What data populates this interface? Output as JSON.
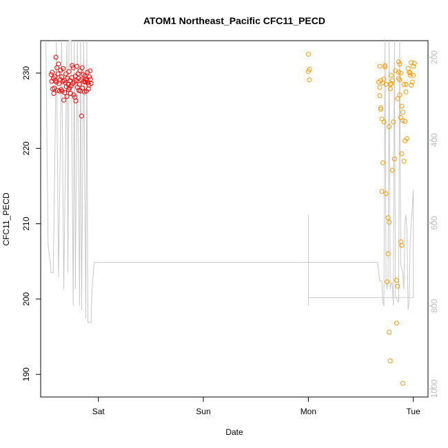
{
  "chart_data": {
    "type": "scatter",
    "title": "ATOM1 Northeast_Pacific CFC11_PECD",
    "xlabel": "Date",
    "ylabel": "CFC11_PECD",
    "x_unit": "days",
    "x_ticks": [
      {
        "value": 1.0,
        "label": "Sat"
      },
      {
        "value": 2.0,
        "label": "Sun"
      },
      {
        "value": 3.0,
        "label": "Mon"
      },
      {
        "value": 4.0,
        "label": "Tue"
      }
    ],
    "xlim": [
      0.45,
      4.14
    ],
    "ylim": [
      187.0,
      234.3
    ],
    "y_ticks": [
      190,
      200,
      210,
      220,
      230
    ],
    "y2_label": "",
    "y2_ticks": [
      200,
      400,
      600,
      800,
      1000
    ],
    "y2_lim": [
      1020.0,
      160.0
    ],
    "grid": false,
    "colors": {
      "series_red": "#ff0000",
      "series_orange": "#ff9900",
      "depth_line": "#c8c8c8",
      "right_axis": "#bdbdbd"
    },
    "series": [
      {
        "color": "red",
        "marker": "open-circle",
        "x": [
          0.55,
          0.555,
          0.56,
          0.565,
          0.57,
          0.575,
          0.58,
          0.585,
          0.59,
          0.595,
          0.6,
          0.605,
          0.61,
          0.615,
          0.62,
          0.625,
          0.63,
          0.635,
          0.64,
          0.645,
          0.65,
          0.655,
          0.66,
          0.665,
          0.67,
          0.675,
          0.68,
          0.685,
          0.69,
          0.695,
          0.7,
          0.705,
          0.71,
          0.715,
          0.72,
          0.725,
          0.73,
          0.735,
          0.74,
          0.745,
          0.75,
          0.755,
          0.76,
          0.765,
          0.77,
          0.775,
          0.78,
          0.785,
          0.79,
          0.795,
          0.8,
          0.805,
          0.81,
          0.815,
          0.82,
          0.825,
          0.83,
          0.835,
          0.84,
          0.845,
          0.85,
          0.855,
          0.86,
          0.865,
          0.87,
          0.875,
          0.88,
          0.885,
          0.89,
          0.895,
          0.9,
          0.905,
          0.91,
          0.915,
          0.92,
          0.925,
          0.93
        ],
        "y": [
          229.8,
          228.9,
          230.1,
          227.9,
          229.3,
          227.3,
          228.0,
          229.5,
          229.0,
          232.1,
          228.8,
          230.7,
          227.7,
          229.9,
          231.2,
          228.6,
          227.6,
          229.1,
          230.4,
          227.8,
          229.5,
          227.6,
          228.9,
          230.6,
          226.4,
          229.0,
          227.4,
          228.7,
          229.9,
          228.2,
          226.9,
          229.3,
          228.5,
          227.8,
          230.2,
          228.0,
          229.0,
          227.3,
          228.3,
          229.4,
          231.0,
          228.6,
          230.7,
          227.1,
          228.8,
          226.8,
          229.6,
          226.3,
          229.0,
          230.9,
          228.1,
          229.9,
          229.3,
          227.7,
          228.5,
          230.3,
          227.6,
          229.1,
          224.3,
          230.7,
          228.0,
          229.8,
          228.9,
          227.5,
          229.6,
          228.8,
          229.2,
          227.6,
          229.0,
          230.1,
          228.7,
          227.9,
          228.4,
          229.5,
          230.3,
          229.2,
          228.6
        ]
      },
      {
        "color": "orange",
        "marker": "open-circle",
        "x": [
          3.0,
          3.0,
          3.01,
          3.01,
          3.67,
          3.68,
          3.68,
          3.68,
          3.69,
          3.69,
          3.69,
          3.7,
          3.7,
          3.71,
          3.71,
          3.72,
          3.72,
          3.73,
          3.73,
          3.74,
          3.74,
          3.75,
          3.76,
          3.76,
          3.77,
          3.77,
          3.77,
          3.78,
          3.78,
          3.78,
          3.79,
          3.79,
          3.8,
          3.8,
          3.81,
          3.82,
          3.83,
          3.84,
          3.84,
          3.85,
          3.85,
          3.86,
          3.86,
          3.86,
          3.87,
          3.87,
          3.87,
          3.88,
          3.88,
          3.88,
          3.89,
          3.89,
          3.89,
          3.9,
          3.9,
          3.9,
          3.91,
          3.91,
          3.92,
          3.92,
          3.93,
          3.93,
          3.94,
          3.95,
          3.96,
          3.97,
          3.97,
          3.98,
          3.98,
          3.99,
          4.0,
          4.0,
          4.01
        ],
        "y": [
          232.5,
          230.2,
          230.5,
          229.1,
          228.8,
          230.9,
          228.1,
          227.0,
          229.0,
          225.2,
          225.4,
          214.3,
          223.9,
          218.1,
          228.7,
          223.5,
          229.2,
          231.0,
          230.8,
          214.0,
          228.5,
          202.3,
          206.0,
          210.8,
          222.9,
          210.2,
          195.6,
          191.8,
          228.5,
          227.9,
          229.7,
          228.6,
          217.1,
          229.0,
          223.5,
          218.6,
          230.3,
          202.5,
          196.8,
          201.7,
          226.6,
          229.3,
          231.5,
          230.1,
          227.1,
          231.2,
          229.1,
          230.0,
          224.1,
          207.6,
          225.6,
          219.3,
          207.1,
          188.8,
          224.8,
          223.7,
          218.3,
          228.5,
          221.0,
          223.6,
          227.5,
          228.5,
          221.3,
          230.6,
          230.1,
          230.0,
          229.7,
          228.4,
          231.4,
          228.8,
          230.9,
          229.7,
          231.3
        ]
      }
    ],
    "depth_series": {
      "axis": "right",
      "color": "gray",
      "style": "line",
      "x": [
        0.5,
        0.52,
        0.55,
        0.57,
        0.6,
        0.62,
        0.65,
        0.67,
        0.7,
        0.71,
        0.72,
        0.74,
        0.76,
        0.77,
        0.78,
        0.8,
        0.82,
        0.83,
        0.84,
        0.86,
        0.88,
        0.89,
        0.9,
        0.92,
        0.93,
        0.94,
        0.96,
        0.98,
        0.99,
        1.0,
        3.0,
        3.66,
        3.67,
        3.68,
        3.69,
        3.7,
        3.71,
        3.72,
        3.73,
        3.74,
        3.75,
        3.76,
        3.77,
        3.78,
        3.79,
        3.8,
        3.81,
        3.82,
        3.83,
        3.84,
        3.85,
        3.86,
        3.87,
        3.88,
        3.89,
        3.9,
        3.91,
        3.92,
        3.93,
        3.94,
        3.95,
        3.96,
        3.97,
        3.98,
        3.99,
        4.0,
        4.0,
        3.0,
        3.0,
        3.0
      ],
      "y": [
        160,
        650,
        720,
        720,
        160,
        730,
        160,
        760,
        160,
        720,
        160,
        160,
        800,
        160,
        760,
        160,
        800,
        160,
        810,
        160,
        830,
        160,
        840,
        840,
        840,
        760,
        695,
        695,
        695,
        695,
        695,
        695,
        720,
        740,
        740,
        740,
        790,
        800,
        160,
        740,
        760,
        740,
        160,
        760,
        745,
        745,
        800,
        160,
        780,
        780,
        790,
        790,
        160,
        700,
        710,
        720,
        760,
        600,
        580,
        620,
        810,
        790,
        650,
        600,
        560,
        520,
        780,
        780,
        800,
        580
      ]
    }
  }
}
